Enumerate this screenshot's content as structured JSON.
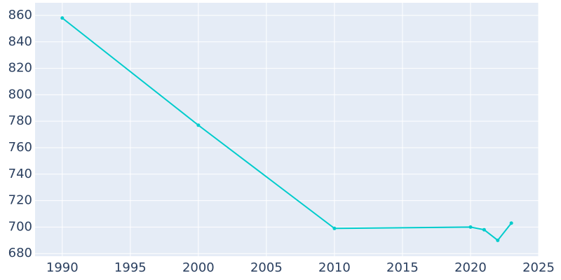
{
  "chart_data": {
    "type": "line",
    "x": [
      1990,
      2000,
      2010,
      2020,
      2021,
      2022,
      2023
    ],
    "series": [
      {
        "color": "#00cccc",
        "values": [
          858,
          777,
          699,
          700,
          698,
          690,
          703
        ]
      }
    ],
    "xlim": [
      1988,
      2025
    ],
    "xticks": [
      1990,
      1995,
      2000,
      2005,
      2010,
      2015,
      2020,
      2025
    ],
    "ylim": [
      678,
      869.5
    ],
    "yticks": [
      680,
      700,
      720,
      740,
      760,
      780,
      800,
      820,
      840,
      860
    ],
    "grid": true
  }
}
